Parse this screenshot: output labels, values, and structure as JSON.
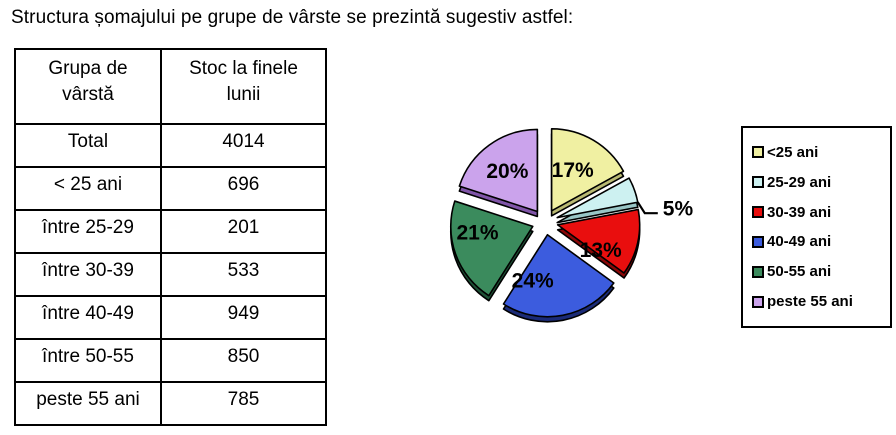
{
  "title": "Structura șomajului pe grupe de vârste se prezintă sugestiv astfel:",
  "table": {
    "headers": [
      "Grupa de vârstă",
      "Stoc la finele lunii"
    ],
    "rows": [
      {
        "label": "Total",
        "value": "4014"
      },
      {
        "label": "< 25 ani",
        "value": "696"
      },
      {
        "label": "între 25-29",
        "value": "201"
      },
      {
        "label": "între 30-39",
        "value": "533"
      },
      {
        "label": "între 40-49",
        "value": "949"
      },
      {
        "label": "între 50-55",
        "value": "850"
      },
      {
        "label": "peste 55 ani",
        "value": "785"
      }
    ]
  },
  "chart_data": {
    "type": "pie",
    "style": "exploded-3d",
    "direction": "clockwise",
    "start_angle_deg": 0,
    "legend_position": "right",
    "slices": [
      {
        "label": "<25 ani",
        "percent": 17,
        "value_label": "17%",
        "color": "#F0F0A2",
        "side_color": "#B9B973",
        "label_outside": false
      },
      {
        "label": "25-29 ani",
        "percent": 5,
        "value_label": "5%",
        "color": "#CDF1F1",
        "side_color": "#98C6C6",
        "label_outside": true
      },
      {
        "label": "30-39 ani",
        "percent": 13,
        "value_label": "13%",
        "color": "#E90E0E",
        "side_color": "#8A0808",
        "label_outside": false
      },
      {
        "label": "40-49 ani",
        "percent": 24,
        "value_label": "24%",
        "color": "#3C5CDE",
        "side_color": "#1B2B77",
        "label_outside": false
      },
      {
        "label": "50-55 ani",
        "percent": 21,
        "value_label": "21%",
        "color": "#3B8B5D",
        "side_color": "#1D5135",
        "label_outside": false
      },
      {
        "label": "peste 55 ani",
        "percent": 20,
        "value_label": "20%",
        "color": "#CBA3EC",
        "side_color": "#8055A8",
        "label_outside": false
      }
    ]
  },
  "colors": {
    "text": "#000000",
    "background": "#ffffff",
    "border": "#000000"
  }
}
